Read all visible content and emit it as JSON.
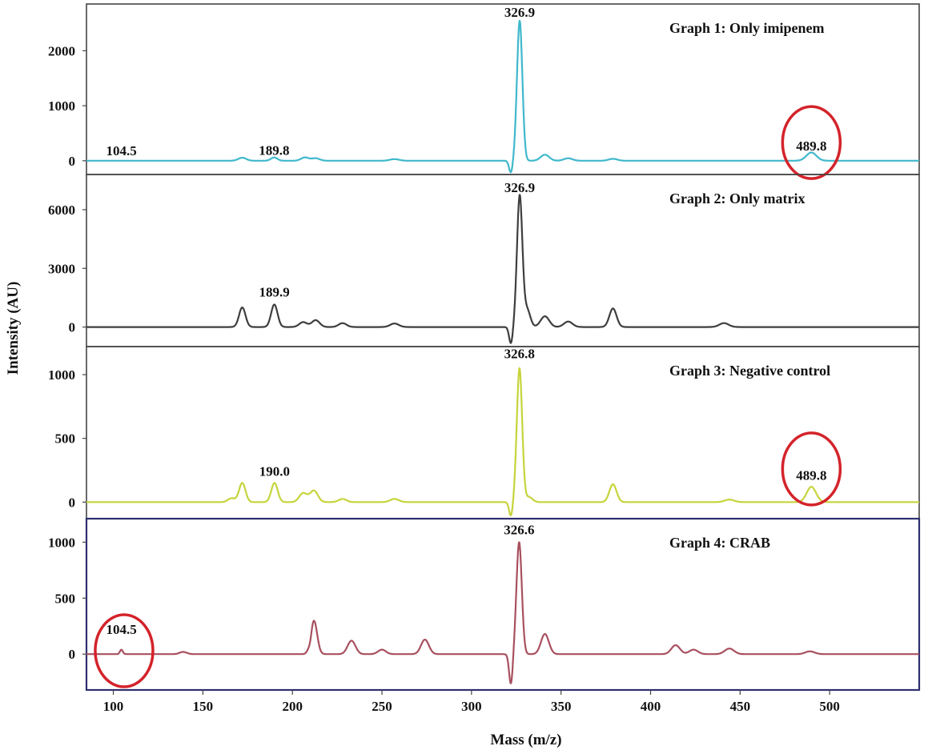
{
  "chart_data": {
    "type": "line",
    "xlabel": "Mass (m/z)",
    "ylabel": "Intensity (AU)",
    "xlim": [
      85,
      550
    ],
    "x_ticks": [
      "100",
      "150",
      "200",
      "250",
      "300",
      "350",
      "400",
      "450",
      "500"
    ],
    "grid": false,
    "panels": [
      {
        "title": "Graph 1: Only imipenem",
        "color": "#3fb8cc",
        "ylim": [
          -250,
          2850
        ],
        "y_ticks": [
          0,
          1000,
          2000
        ],
        "y_tick_labels": [
          "0",
          "1000",
          "2000"
        ],
        "baseline": 0,
        "peaks": [
          {
            "x": 104.5,
            "y": 0,
            "w": 0.6
          },
          {
            "x": 172,
            "y": 55,
            "w": 2.2
          },
          {
            "x": 189.8,
            "y": 60,
            "w": 1.8
          },
          {
            "x": 207,
            "y": 60,
            "w": 2.2
          },
          {
            "x": 213,
            "y": 45,
            "w": 2.2
          },
          {
            "x": 257,
            "y": 30,
            "w": 2.5
          },
          {
            "x": 322,
            "y": -220,
            "w": 1.0
          },
          {
            "x": 326.9,
            "y": 2550,
            "w": 1.5
          },
          {
            "x": 341,
            "y": 110,
            "w": 2.4
          },
          {
            "x": 354,
            "y": 45,
            "w": 2.4
          },
          {
            "x": 379,
            "y": 35,
            "w": 2.4
          },
          {
            "x": 489.8,
            "y": 150,
            "w": 2.8
          }
        ],
        "labels": [
          {
            "x": 104.5,
            "y": 100,
            "text": "104.5"
          },
          {
            "x": 189.8,
            "y": 110,
            "text": "189.8"
          },
          {
            "x": 326.9,
            "y": 2620,
            "text": "326.9"
          },
          {
            "x": 489.8,
            "y": 190,
            "text": "489.8"
          }
        ],
        "circles": [
          {
            "x": 489.8,
            "y": 330
          }
        ]
      },
      {
        "title": "Graph 2: Only matrix",
        "color": "#3e3e3e",
        "ylim": [
          -1000,
          7800
        ],
        "y_ticks": [
          0,
          3000,
          6000
        ],
        "y_tick_labels": [
          "0",
          "3000",
          "6000"
        ],
        "baseline": 0,
        "peaks": [
          {
            "x": 172,
            "y": 1000,
            "w": 1.8
          },
          {
            "x": 189.9,
            "y": 1150,
            "w": 1.8
          },
          {
            "x": 206,
            "y": 250,
            "w": 2.2
          },
          {
            "x": 213,
            "y": 350,
            "w": 2.2
          },
          {
            "x": 228,
            "y": 200,
            "w": 2.2
          },
          {
            "x": 257,
            "y": 180,
            "w": 2.4
          },
          {
            "x": 322,
            "y": -850,
            "w": 1.0
          },
          {
            "x": 326.9,
            "y": 6700,
            "w": 1.5
          },
          {
            "x": 331,
            "y": 900,
            "w": 1.8
          },
          {
            "x": 341,
            "y": 550,
            "w": 2.4
          },
          {
            "x": 354,
            "y": 280,
            "w": 2.4
          },
          {
            "x": 379,
            "y": 950,
            "w": 2.0
          },
          {
            "x": 441,
            "y": 200,
            "w": 2.6
          }
        ],
        "labels": [
          {
            "x": 189.9,
            "y": 1550,
            "text": "189.9"
          },
          {
            "x": 326.9,
            "y": 6900,
            "text": "326.9"
          }
        ],
        "circles": []
      },
      {
        "title": "Graph 3: Negative control",
        "color": "#c6d43b",
        "ylim": [
          -130,
          1220
        ],
        "y_ticks": [
          0,
          500,
          1000
        ],
        "y_tick_labels": [
          "0",
          "500",
          "1000"
        ],
        "baseline": 0,
        "peaks": [
          {
            "x": 166,
            "y": 30,
            "w": 2.0
          },
          {
            "x": 172,
            "y": 150,
            "w": 1.8
          },
          {
            "x": 190.0,
            "y": 150,
            "w": 1.8
          },
          {
            "x": 206,
            "y": 70,
            "w": 2.2
          },
          {
            "x": 212,
            "y": 90,
            "w": 2.2
          },
          {
            "x": 228,
            "y": 25,
            "w": 2.2
          },
          {
            "x": 257,
            "y": 25,
            "w": 2.4
          },
          {
            "x": 322,
            "y": -110,
            "w": 1.0
          },
          {
            "x": 326.8,
            "y": 1050,
            "w": 1.5
          },
          {
            "x": 332,
            "y": 40,
            "w": 2.0
          },
          {
            "x": 379,
            "y": 140,
            "w": 2.0
          },
          {
            "x": 444,
            "y": 20,
            "w": 2.6
          },
          {
            "x": 489.8,
            "y": 120,
            "w": 2.6
          }
        ],
        "labels": [
          {
            "x": 190.0,
            "y": 205,
            "text": "190.0"
          },
          {
            "x": 326.8,
            "y": 1130,
            "text": "326.8"
          },
          {
            "x": 489.8,
            "y": 175,
            "text": "489.8"
          }
        ],
        "circles": [
          {
            "x": 489.8,
            "y": 260
          }
        ]
      },
      {
        "title": "Graph 4: CRAB",
        "color": "#a8505e",
        "ylim": [
          -320,
          1210
        ],
        "y_ticks": [
          0,
          500,
          1000
        ],
        "y_tick_labels": [
          "0",
          "500",
          "1000"
        ],
        "baseline": 0,
        "peaks": [
          {
            "x": 104.5,
            "y": 40,
            "w": 0.8
          },
          {
            "x": 139,
            "y": 20,
            "w": 2.0
          },
          {
            "x": 210,
            "y": -40,
            "w": 0.8
          },
          {
            "x": 212,
            "y": 300,
            "w": 1.8
          },
          {
            "x": 233,
            "y": 120,
            "w": 2.2
          },
          {
            "x": 250,
            "y": 40,
            "w": 2.2
          },
          {
            "x": 274,
            "y": 130,
            "w": 2.2
          },
          {
            "x": 322,
            "y": -270,
            "w": 1.0
          },
          {
            "x": 326.6,
            "y": 1000,
            "w": 1.5
          },
          {
            "x": 341,
            "y": 180,
            "w": 2.2
          },
          {
            "x": 414,
            "y": 80,
            "w": 2.4
          },
          {
            "x": 424,
            "y": 40,
            "w": 2.4
          },
          {
            "x": 444,
            "y": 50,
            "w": 2.6
          },
          {
            "x": 489,
            "y": 25,
            "w": 2.6
          }
        ],
        "labels": [
          {
            "x": 104.5,
            "y": 180,
            "text": "104.5"
          },
          {
            "x": 326.6,
            "y": 1070,
            "text": "326.6"
          }
        ],
        "circles": [
          {
            "x": 106,
            "y": 30
          }
        ]
      }
    ]
  }
}
